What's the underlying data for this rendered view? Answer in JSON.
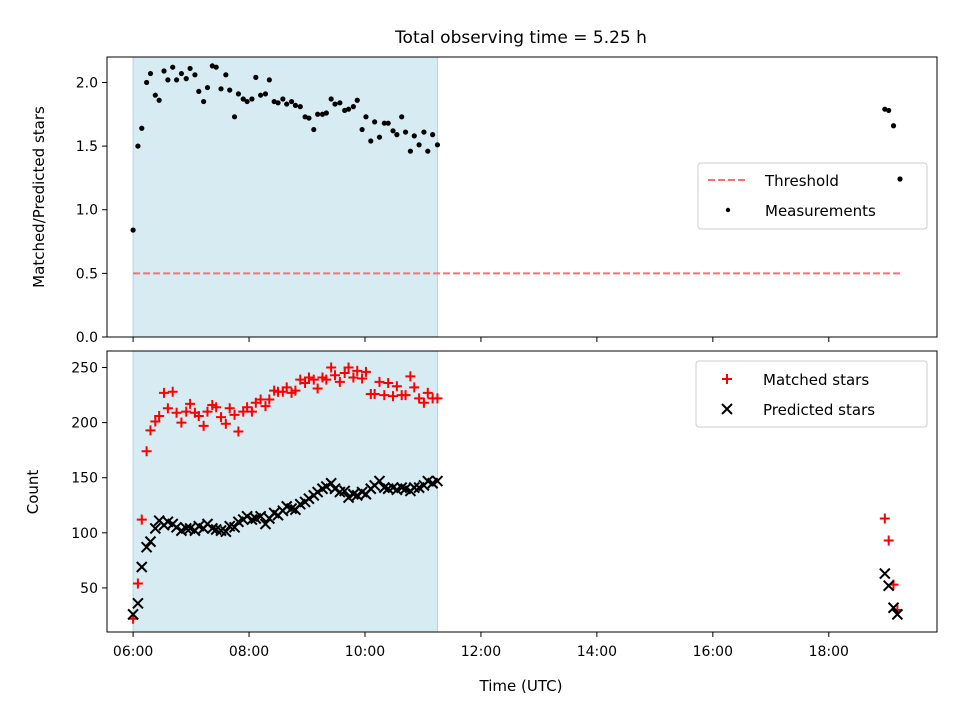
{
  "chart_data": [
    {
      "type": "scatter",
      "title": "Total observing time = 5.25 h",
      "ylabel": "Matched/Predicted stars",
      "xlabel": "",
      "xlim": [
        "05:33",
        "19:52"
      ],
      "ylim": [
        0,
        2.2
      ],
      "yticks": [
        0.0,
        0.5,
        1.0,
        1.5,
        2.0
      ],
      "ytick_labels": [
        "0.0",
        "0.5",
        "1.0",
        "1.5",
        "2.0"
      ],
      "highlight_span": [
        "06:00",
        "11:15"
      ],
      "legend": {
        "placement": "center-right",
        "labels": [
          "Threshold",
          "Measurements"
        ]
      },
      "series": [
        {
          "name": "Threshold",
          "style": "dashed-line",
          "color": "#ff6e6e",
          "x": [
            "06:00",
            "19:15"
          ],
          "y": [
            0.5,
            0.5
          ]
        },
        {
          "name": "Measurements",
          "style": "dot",
          "color": "#000000",
          "x": [
            "06:00",
            "06:05",
            "06:09",
            "06:14",
            "06:18",
            "06:23",
            "06:27",
            "06:32",
            "06:36",
            "06:41",
            "06:45",
            "06:50",
            "06:55",
            "06:59",
            "07:04",
            "07:08",
            "07:13",
            "07:17",
            "07:22",
            "07:26",
            "07:31",
            "07:36",
            "07:40",
            "07:45",
            "07:49",
            "07:54",
            "07:58",
            "08:03",
            "08:07",
            "08:12",
            "08:17",
            "08:21",
            "08:26",
            "08:30",
            "08:35",
            "08:39",
            "08:44",
            "08:48",
            "08:53",
            "08:58",
            "09:02",
            "09:07",
            "09:11",
            "09:16",
            "09:20",
            "09:25",
            "09:29",
            "09:34",
            "09:39",
            "09:43",
            "09:48",
            "09:52",
            "09:57",
            "10:01",
            "10:06",
            "10:10",
            "10:15",
            "10:20",
            "10:24",
            "10:29",
            "10:33",
            "10:38",
            "10:42",
            "10:47",
            "10:51",
            "10:56",
            "11:01",
            "11:05",
            "11:10",
            "11:15",
            "18:58",
            "19:02",
            "19:07"
          ],
          "y": [
            0.84,
            1.5,
            1.64,
            2.0,
            2.07,
            1.9,
            1.86,
            2.09,
            2.02,
            2.12,
            2.02,
            2.07,
            2.03,
            2.11,
            2.06,
            1.93,
            1.85,
            1.96,
            2.13,
            2.12,
            1.95,
            2.06,
            1.94,
            1.73,
            1.91,
            1.87,
            1.85,
            1.87,
            2.04,
            1.9,
            1.91,
            2.02,
            1.85,
            1.84,
            1.87,
            1.83,
            1.85,
            1.82,
            1.81,
            1.73,
            1.72,
            1.63,
            1.75,
            1.75,
            1.76,
            1.87,
            1.83,
            1.84,
            1.78,
            1.79,
            1.81,
            1.86,
            1.63,
            1.73,
            1.54,
            1.69,
            1.57,
            1.68,
            1.68,
            1.62,
            1.59,
            1.73,
            1.61,
            1.46,
            1.58,
            1.51,
            1.61,
            1.46,
            1.59,
            1.51,
            1.79,
            1.78,
            1.66
          ]
        }
      ]
    },
    {
      "type": "scatter",
      "title": "",
      "ylabel": "Count",
      "xlabel": "Time (UTC)",
      "xlim": [
        "05:33",
        "19:52"
      ],
      "ylim": [
        10,
        265
      ],
      "yticks": [
        50,
        100,
        150,
        200,
        250
      ],
      "ytick_labels": [
        "50",
        "100",
        "150",
        "200",
        "250"
      ],
      "xticks": [
        "06:00",
        "08:00",
        "10:00",
        "12:00",
        "14:00",
        "16:00",
        "18:00"
      ],
      "highlight_span": [
        "06:00",
        "11:15"
      ],
      "legend": {
        "placement": "top-right",
        "labels": [
          "Matched stars",
          "Predicted stars"
        ]
      },
      "series": [
        {
          "name": "Matched stars",
          "style": "plus",
          "color": "#ff0000",
          "x": [
            "06:00",
            "06:05",
            "06:09",
            "06:14",
            "06:18",
            "06:23",
            "06:27",
            "06:32",
            "06:36",
            "06:41",
            "06:45",
            "06:50",
            "06:55",
            "06:59",
            "07:04",
            "07:08",
            "07:13",
            "07:17",
            "07:22",
            "07:26",
            "07:31",
            "07:36",
            "07:40",
            "07:45",
            "07:49",
            "07:54",
            "07:58",
            "08:03",
            "08:07",
            "08:12",
            "08:17",
            "08:21",
            "08:26",
            "08:30",
            "08:35",
            "08:39",
            "08:44",
            "08:48",
            "08:53",
            "08:58",
            "09:02",
            "09:07",
            "09:11",
            "09:16",
            "09:20",
            "09:25",
            "09:29",
            "09:34",
            "09:39",
            "09:43",
            "09:48",
            "09:52",
            "09:57",
            "10:01",
            "10:06",
            "10:10",
            "10:15",
            "10:20",
            "10:24",
            "10:29",
            "10:33",
            "10:38",
            "10:42",
            "10:47",
            "10:51",
            "10:56",
            "11:01",
            "11:05",
            "11:10",
            "11:15",
            "18:58",
            "19:02",
            "19:07",
            "19:11"
          ],
          "y": [
            22,
            54,
            112,
            174,
            193,
            201,
            206,
            227,
            213,
            228,
            209,
            200,
            210,
            217,
            209,
            206,
            197,
            210,
            216,
            214,
            205,
            199,
            213,
            207,
            192,
            210,
            214,
            210,
            218,
            221,
            215,
            221,
            229,
            228,
            228,
            232,
            227,
            229,
            239,
            236,
            241,
            239,
            231,
            241,
            239,
            250,
            243,
            237,
            245,
            250,
            241,
            247,
            240,
            246,
            226,
            226,
            237,
            225,
            236,
            224,
            233,
            225,
            225,
            242,
            232,
            222,
            218,
            227,
            222,
            222,
            113,
            93,
            53,
            30
          ]
        },
        {
          "name": "Predicted stars",
          "style": "x",
          "color": "#000000",
          "x": [
            "06:00",
            "06:05",
            "06:09",
            "06:14",
            "06:18",
            "06:23",
            "06:27",
            "06:32",
            "06:36",
            "06:41",
            "06:45",
            "06:50",
            "06:55",
            "06:59",
            "07:04",
            "07:08",
            "07:13",
            "07:17",
            "07:22",
            "07:26",
            "07:31",
            "07:36",
            "07:40",
            "07:45",
            "07:49",
            "07:54",
            "07:58",
            "08:03",
            "08:07",
            "08:12",
            "08:17",
            "08:21",
            "08:26",
            "08:30",
            "08:35",
            "08:39",
            "08:44",
            "08:48",
            "08:53",
            "08:58",
            "09:02",
            "09:07",
            "09:11",
            "09:16",
            "09:20",
            "09:25",
            "09:29",
            "09:34",
            "09:39",
            "09:43",
            "09:48",
            "09:52",
            "09:57",
            "10:01",
            "10:06",
            "10:10",
            "10:15",
            "10:20",
            "10:24",
            "10:29",
            "10:33",
            "10:38",
            "10:42",
            "10:47",
            "10:51",
            "10:56",
            "11:01",
            "11:05",
            "11:10",
            "11:15",
            "18:58",
            "19:02",
            "19:07",
            "19:11"
          ],
          "y": [
            26,
            36,
            69,
            87,
            92,
            104,
            111,
            107,
            110,
            108,
            105,
            102,
            104,
            104,
            102,
            106,
            104,
            108,
            104,
            103,
            102,
            101,
            106,
            105,
            110,
            112,
            115,
            112,
            113,
            115,
            108,
            113,
            118,
            116,
            120,
            124,
            122,
            121,
            126,
            128,
            131,
            134,
            137,
            140,
            142,
            145,
            140,
            137,
            138,
            132,
            135,
            134,
            137,
            135,
            140,
            143,
            147,
            141,
            140,
            141,
            139,
            141,
            140,
            138,
            141,
            141,
            143,
            147,
            145,
            147,
            63,
            52,
            32,
            26
          ]
        }
      ]
    }
  ]
}
